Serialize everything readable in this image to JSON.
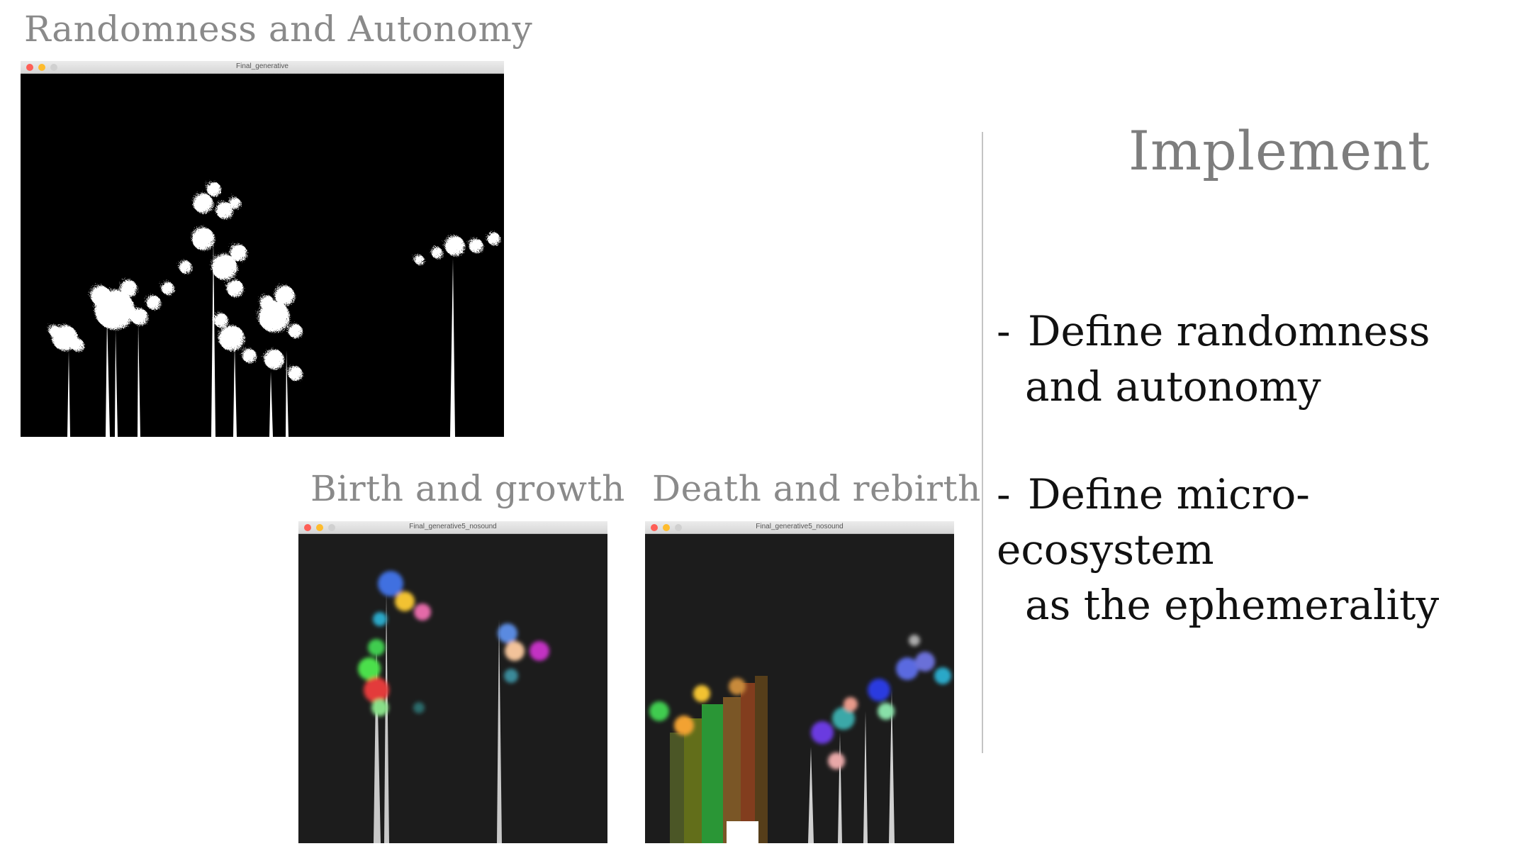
{
  "captions": {
    "randomness": "Randomness and Autonomy",
    "birth": "Birth and growth",
    "death": "Death and rebirth"
  },
  "windows": {
    "main": {
      "title": "Final_generative"
    },
    "birth": {
      "title": "Final_generative5_nosound"
    },
    "death": {
      "title": "Final_generative5_nosound"
    }
  },
  "panel": {
    "heading": "Implement",
    "bullets": [
      {
        "dash": "-",
        "line1": "Define randomness",
        "line2": "and autonomy"
      },
      {
        "dash": "-",
        "line1": "Define micro-ecosystem",
        "line2": "as the ephemerality"
      }
    ]
  },
  "colors": {
    "caption": "#8a8a8a",
    "heading": "#7d7d7d",
    "bullet_text": "#111111",
    "main_canvas_bg": "#000000",
    "small_canvas_bg": "#1c1c1c",
    "close": "#fe5f57",
    "minimize": "#febc2e",
    "maximize": "#d0d0d0"
  }
}
